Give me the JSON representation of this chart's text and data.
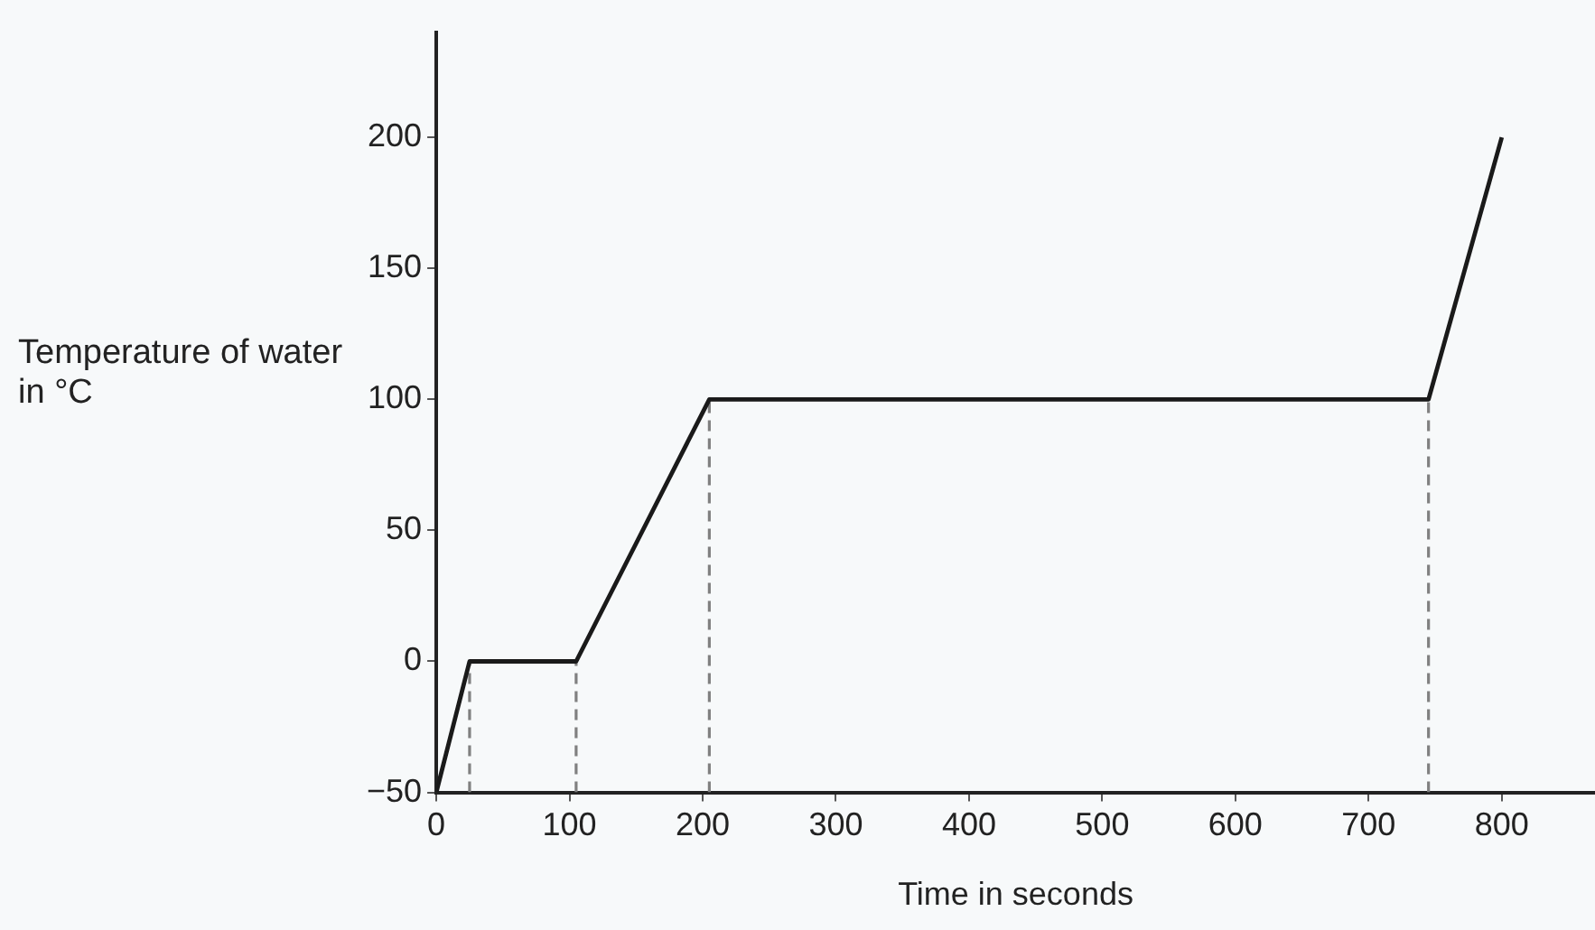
{
  "chart_data": {
    "type": "line",
    "xlabel": "Time in seconds",
    "ylabel": "Temperature of water in °C",
    "xlim": [
      0,
      870
    ],
    "xticks": [
      0,
      100,
      200,
      300,
      400,
      500,
      600,
      700,
      800
    ],
    "ylim": [
      -50,
      240
    ],
    "yticks": [
      -50,
      0,
      50,
      100,
      150,
      200
    ],
    "grid": false,
    "legend": false,
    "marker": "none",
    "series": [
      {
        "color": "#1a1a1a",
        "line_style": "solid",
        "x": [
          0,
          25,
          105,
          205,
          745,
          800
        ],
        "values": [
          -50,
          0,
          0,
          100,
          100,
          200
        ]
      },
      {
        "color": "#808080",
        "line_style": "dashed",
        "x": [
          25,
          25
        ],
        "values": [
          -50,
          0
        ]
      },
      {
        "color": "#808080",
        "line_style": "dashed",
        "x": [
          105,
          105
        ],
        "values": [
          -50,
          0
        ]
      },
      {
        "color": "#808080",
        "line_style": "dashed",
        "x": [
          205,
          205
        ],
        "values": [
          -50,
          100
        ]
      },
      {
        "color": "#808080",
        "line_style": "dashed",
        "x": [
          745,
          745
        ],
        "values": [
          -50,
          100
        ]
      }
    ]
  }
}
